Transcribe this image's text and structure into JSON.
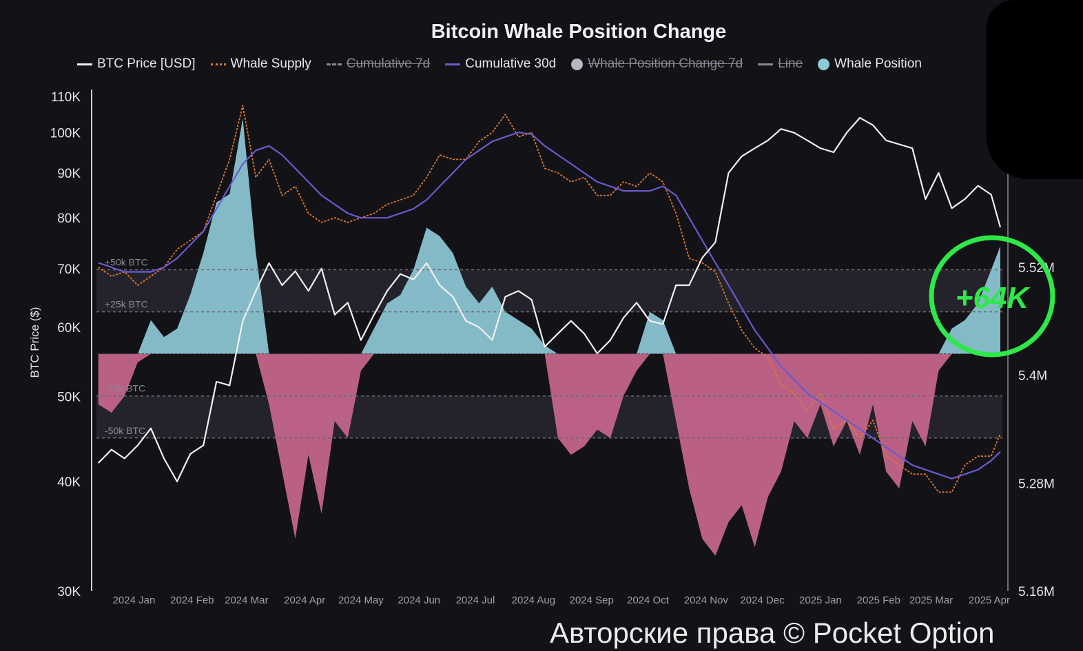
{
  "chart_data": {
    "type": "line",
    "title": "Bitcoin Whale Position Change",
    "ylabel": "BTC Price ($)",
    "y_scale": "log",
    "ylim": [
      30000,
      110000
    ],
    "y_ticks": [
      {
        "v": 30000,
        "label": "30K"
      },
      {
        "v": 40000,
        "label": "40K"
      },
      {
        "v": 50000,
        "label": "50K"
      },
      {
        "v": 60000,
        "label": "60K"
      },
      {
        "v": 70000,
        "label": "70K"
      },
      {
        "v": 80000,
        "label": "80K"
      },
      {
        "v": 90000,
        "label": "90K"
      },
      {
        "v": 100000,
        "label": "100K"
      },
      {
        "v": 110000,
        "label": "110K"
      }
    ],
    "y2_ticks": [
      {
        "v": 5.16,
        "label": "5.16M"
      },
      {
        "v": 5.28,
        "label": "5.28M"
      },
      {
        "v": 5.4,
        "label": "5.4M"
      },
      {
        "v": 5.52,
        "label": "5.52M"
      }
    ],
    "y2lim": [
      5.16,
      5.71
    ],
    "y3lim_kbtc": [
      -141,
      153
    ],
    "guide_lines": [
      {
        "v": 50,
        "label": "+50k BTC"
      },
      {
        "v": 25,
        "label": "+25k BTC"
      },
      {
        "v": -25,
        "label": "-25k BTC"
      },
      {
        "v": -50,
        "label": "-50k BTC"
      }
    ],
    "xlim": [
      "2023-12-12",
      "2025-04-08"
    ],
    "x_ticks": [
      {
        "d": "2024-01-01",
        "label": "2024 Jan"
      },
      {
        "d": "2024-02-01",
        "label": "2024 Feb"
      },
      {
        "d": "2024-03-01",
        "label": "2024 Mar"
      },
      {
        "d": "2024-04-01",
        "label": "2024 Apr"
      },
      {
        "d": "2024-05-01",
        "label": "2024 May"
      },
      {
        "d": "2024-06-01",
        "label": "2024 Jun"
      },
      {
        "d": "2024-07-01",
        "label": "2024 Jul"
      },
      {
        "d": "2024-08-01",
        "label": "2024 Aug"
      },
      {
        "d": "2024-09-01",
        "label": "2024 Sep"
      },
      {
        "d": "2024-10-01",
        "label": "2024 Oct"
      },
      {
        "d": "2024-11-01",
        "label": "2024 Nov"
      },
      {
        "d": "2024-12-01",
        "label": "2024 Dec"
      },
      {
        "d": "2025-01-01",
        "label": "2025 Jan"
      },
      {
        "d": "2025-02-01",
        "label": "2025 Feb"
      },
      {
        "d": "2025-03-01",
        "label": "2025 Mar"
      },
      {
        "d": "2025-04-01",
        "label": "2025 Apr"
      }
    ],
    "x_start": "2023-12-13",
    "x_step_days": 7,
    "legend": [
      {
        "name": "BTC Price [USD]",
        "color": "#f0f0f0",
        "style": "line",
        "enabled": true
      },
      {
        "name": "Whale Supply",
        "color": "#e07b2a",
        "style": "dotted",
        "enabled": true
      },
      {
        "name": "Cumulative 7d",
        "color": "#8a8a96",
        "style": "dashed",
        "enabled": false
      },
      {
        "name": "Cumulative 30d",
        "color": "#6a5acd",
        "style": "line",
        "enabled": true
      },
      {
        "name": "Whale Position Change 7d",
        "color": "#b8b8c4",
        "style": "dot",
        "enabled": false
      },
      {
        "name": "Line",
        "color": "#8a8a96",
        "style": "line",
        "enabled": false
      },
      {
        "name": "Whale Position",
        "color": "#8ec9d6",
        "style": "dot",
        "enabled": true
      }
    ],
    "series": [
      {
        "name": "BTC Price [USD]",
        "unit": "K USD",
        "values": [
          42,
          43.5,
          42.5,
          44,
          46,
          42.5,
          40,
          43,
          44,
          52,
          51.5,
          61,
          66,
          71,
          67,
          69.5,
          66,
          70,
          62,
          64,
          58,
          62,
          66,
          69,
          68,
          71,
          67,
          65,
          61,
          60,
          58,
          65,
          66,
          64.5,
          57,
          59,
          61,
          59,
          56,
          58,
          61.5,
          64,
          61,
          60.5,
          67,
          67,
          72,
          75,
          90,
          94,
          96,
          98,
          101,
          100,
          98,
          96,
          95,
          100,
          104,
          102,
          98,
          97,
          96,
          84,
          90,
          82,
          84,
          87,
          85,
          78
        ]
      },
      {
        "name": "Whale Supply",
        "unit": "M BTC",
        "values": [
          5.52,
          5.51,
          5.515,
          5.5,
          5.51,
          5.52,
          5.54,
          5.55,
          5.56,
          5.6,
          5.64,
          5.7,
          5.62,
          5.64,
          5.6,
          5.61,
          5.58,
          5.57,
          5.575,
          5.57,
          5.575,
          5.58,
          5.59,
          5.595,
          5.6,
          5.62,
          5.645,
          5.64,
          5.64,
          5.66,
          5.67,
          5.69,
          5.665,
          5.67,
          5.63,
          5.625,
          5.615,
          5.62,
          5.6,
          5.6,
          5.615,
          5.61,
          5.625,
          5.615,
          5.58,
          5.53,
          5.525,
          5.515,
          5.48,
          5.45,
          5.43,
          5.42,
          5.39,
          5.38,
          5.36,
          5.38,
          5.34,
          5.35,
          5.33,
          5.35,
          5.31,
          5.3,
          5.29,
          5.29,
          5.27,
          5.27,
          5.3,
          5.31,
          5.31,
          5.335
        ]
      },
      {
        "name": "Cumulative 30d",
        "unit": "M BTC",
        "values": [
          5.525,
          5.52,
          5.515,
          5.515,
          5.515,
          5.52,
          5.53,
          5.545,
          5.56,
          5.585,
          5.61,
          5.635,
          5.65,
          5.655,
          5.645,
          5.63,
          5.615,
          5.6,
          5.59,
          5.58,
          5.575,
          5.575,
          5.575,
          5.58,
          5.585,
          5.595,
          5.61,
          5.625,
          5.64,
          5.65,
          5.66,
          5.665,
          5.67,
          5.668,
          5.655,
          5.645,
          5.635,
          5.625,
          5.615,
          5.61,
          5.605,
          5.605,
          5.605,
          5.61,
          5.6,
          5.575,
          5.55,
          5.525,
          5.5,
          5.475,
          5.45,
          5.43,
          5.41,
          5.395,
          5.38,
          5.37,
          5.36,
          5.35,
          5.34,
          5.33,
          5.32,
          5.31,
          5.3,
          5.295,
          5.29,
          5.285,
          5.29,
          5.295,
          5.305,
          5.315
        ]
      },
      {
        "name": "Whale Position",
        "unit": "K BTC",
        "values": [
          -30,
          -35,
          -25,
          -5,
          20,
          10,
          15,
          35,
          60,
          90,
          95,
          140,
          60,
          -30,
          -70,
          -110,
          -60,
          -95,
          -40,
          -50,
          -10,
          15,
          30,
          35,
          50,
          75,
          70,
          60,
          40,
          30,
          40,
          25,
          20,
          15,
          5,
          -50,
          -60,
          -55,
          -45,
          -50,
          -25,
          -10,
          25,
          20,
          -40,
          -80,
          -110,
          -120,
          -100,
          -90,
          -115,
          -85,
          -70,
          -40,
          -50,
          -30,
          -55,
          -40,
          -60,
          -30,
          -70,
          -80,
          -40,
          -55,
          -10,
          15,
          20,
          30,
          50,
          64
        ]
      }
    ],
    "annotation": {
      "text": "+64K",
      "color": "#2ee84a"
    },
    "colors": {
      "background": "#131217",
      "positive": "#8ec9d6",
      "negative": "#c9678f"
    }
  },
  "watermark": "Авторские права © Pocket Option"
}
